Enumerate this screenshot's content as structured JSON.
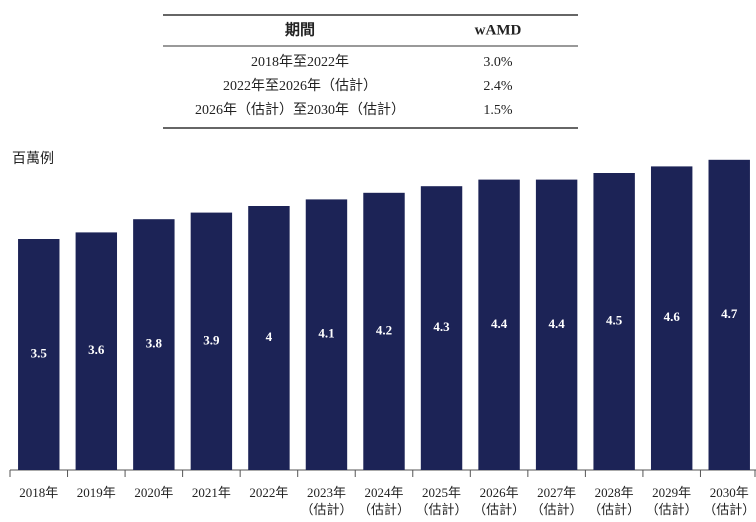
{
  "table": {
    "header": [
      "期間",
      "wAMD"
    ],
    "rows": [
      [
        "2018年至2022年",
        "3.0%"
      ],
      [
        "2022年至2026年（估計）",
        "2.4%"
      ],
      [
        "2026年（估計）至2030年（估計）",
        "1.5%"
      ]
    ]
  },
  "chart_data": {
    "type": "bar",
    "unit_label": "百萬例",
    "categories": [
      "2018年",
      "2019年",
      "2020年",
      "2021年",
      "2022年",
      "2023年\n（估計）",
      "2024年\n（估計）",
      "2025年\n（估計）",
      "2026年\n（估計）",
      "2027年\n（估計）",
      "2028年\n（估計）",
      "2029年\n（估計）",
      "2030年\n（估計）"
    ],
    "values": [
      3.5,
      3.6,
      3.8,
      3.9,
      4.0,
      4.1,
      4.2,
      4.3,
      4.4,
      4.4,
      4.5,
      4.6,
      4.7
    ],
    "color": "#1c2356",
    "ylim": [
      0,
      5
    ]
  }
}
